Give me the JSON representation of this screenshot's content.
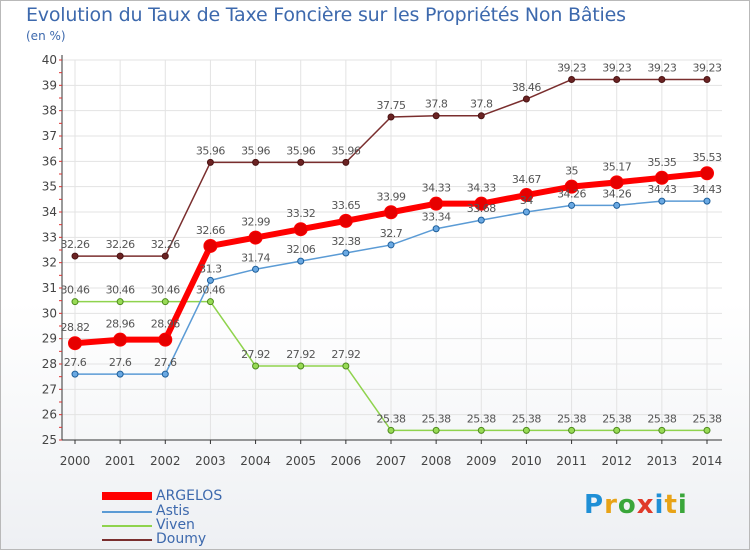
{
  "title": "Evolution du Taux de Taxe Foncière sur les Propriétés Non Bâties",
  "subtitle": "(en %)",
  "brand": {
    "letters": [
      "P",
      "r",
      "o",
      "x",
      "i",
      "t",
      "i"
    ],
    "colors": [
      "#1f8fd6",
      "#e8a317",
      "#3aa63a",
      "#e03a2a",
      "#1f8fd6",
      "#e8a317",
      "#3aa63a"
    ]
  },
  "chart_data": {
    "type": "line",
    "title": "Evolution du Taux de Taxe Foncière sur les Propriétés Non Bâties",
    "ylabel": "(en %)",
    "xlabel": "",
    "ylim": [
      25,
      40
    ],
    "yticks": [
      "25",
      "26",
      "27",
      "28",
      "29",
      "30",
      "31",
      "32",
      "33",
      "34",
      "35",
      "36",
      "37",
      "38",
      "39",
      "40"
    ],
    "categories": [
      "2000",
      "2001",
      "2002",
      "2003",
      "2004",
      "2005",
      "2006",
      "2007",
      "2008",
      "2009",
      "2010",
      "2011",
      "2012",
      "2013",
      "2014"
    ],
    "series": [
      {
        "name": "ARGELOS",
        "color": "#ff0000",
        "values": [
          28.82,
          28.96,
          28.96,
          32.66,
          32.99,
          33.32,
          33.65,
          33.99,
          34.33,
          34.33,
          34.67,
          35,
          35.17,
          35.35,
          35.53
        ],
        "labels": [
          "28.82",
          "28.96",
          "28.96",
          "32.66",
          "32.99",
          "33.32",
          "33.65",
          "33.99",
          "34.33",
          "34.33",
          "34.67",
          "35",
          "35.17",
          "35.35",
          "35.53"
        ]
      },
      {
        "name": "Astis",
        "color": "#5b9bd5",
        "values": [
          27.6,
          27.6,
          27.6,
          31.3,
          31.74,
          32.06,
          32.38,
          32.7,
          33.34,
          33.68,
          34,
          34.26,
          34.26,
          34.43,
          34.43
        ],
        "labels": [
          "27.6",
          "27.6",
          "27.6",
          "31.3",
          "31.74",
          "32.06",
          "32.38",
          "32.7",
          "33.34",
          "33.68",
          "34",
          "34.26",
          "34.26",
          "34.43",
          "34.43"
        ]
      },
      {
        "name": "Viven",
        "color": "#8fd34d",
        "values": [
          30.46,
          30.46,
          30.46,
          30.46,
          27.92,
          27.92,
          27.92,
          25.38,
          25.38,
          25.38,
          25.38,
          25.38,
          25.38,
          25.38,
          25.38
        ],
        "labels": [
          "30.46",
          "30.46",
          "30.46",
          "30.46",
          "27.92",
          "27.92",
          "27.92",
          "25.38",
          "25.38",
          "25.38",
          "25.38",
          "25.38",
          "25.38",
          "25.38",
          "25.38"
        ]
      },
      {
        "name": "Doumy",
        "color": "#7a2e2e",
        "values": [
          32.26,
          32.26,
          32.26,
          35.96,
          35.96,
          35.96,
          35.96,
          37.75,
          37.8,
          37.8,
          38.46,
          39.23,
          39.23,
          39.23,
          39.23
        ],
        "labels": [
          "32.26",
          "32.26",
          "32.26",
          "35.96",
          "35.96",
          "35.96",
          "35.96",
          "37.75",
          "37.8",
          "37.8",
          "38.46",
          "39.23",
          "39.23",
          "39.23",
          "39.23"
        ]
      }
    ]
  }
}
